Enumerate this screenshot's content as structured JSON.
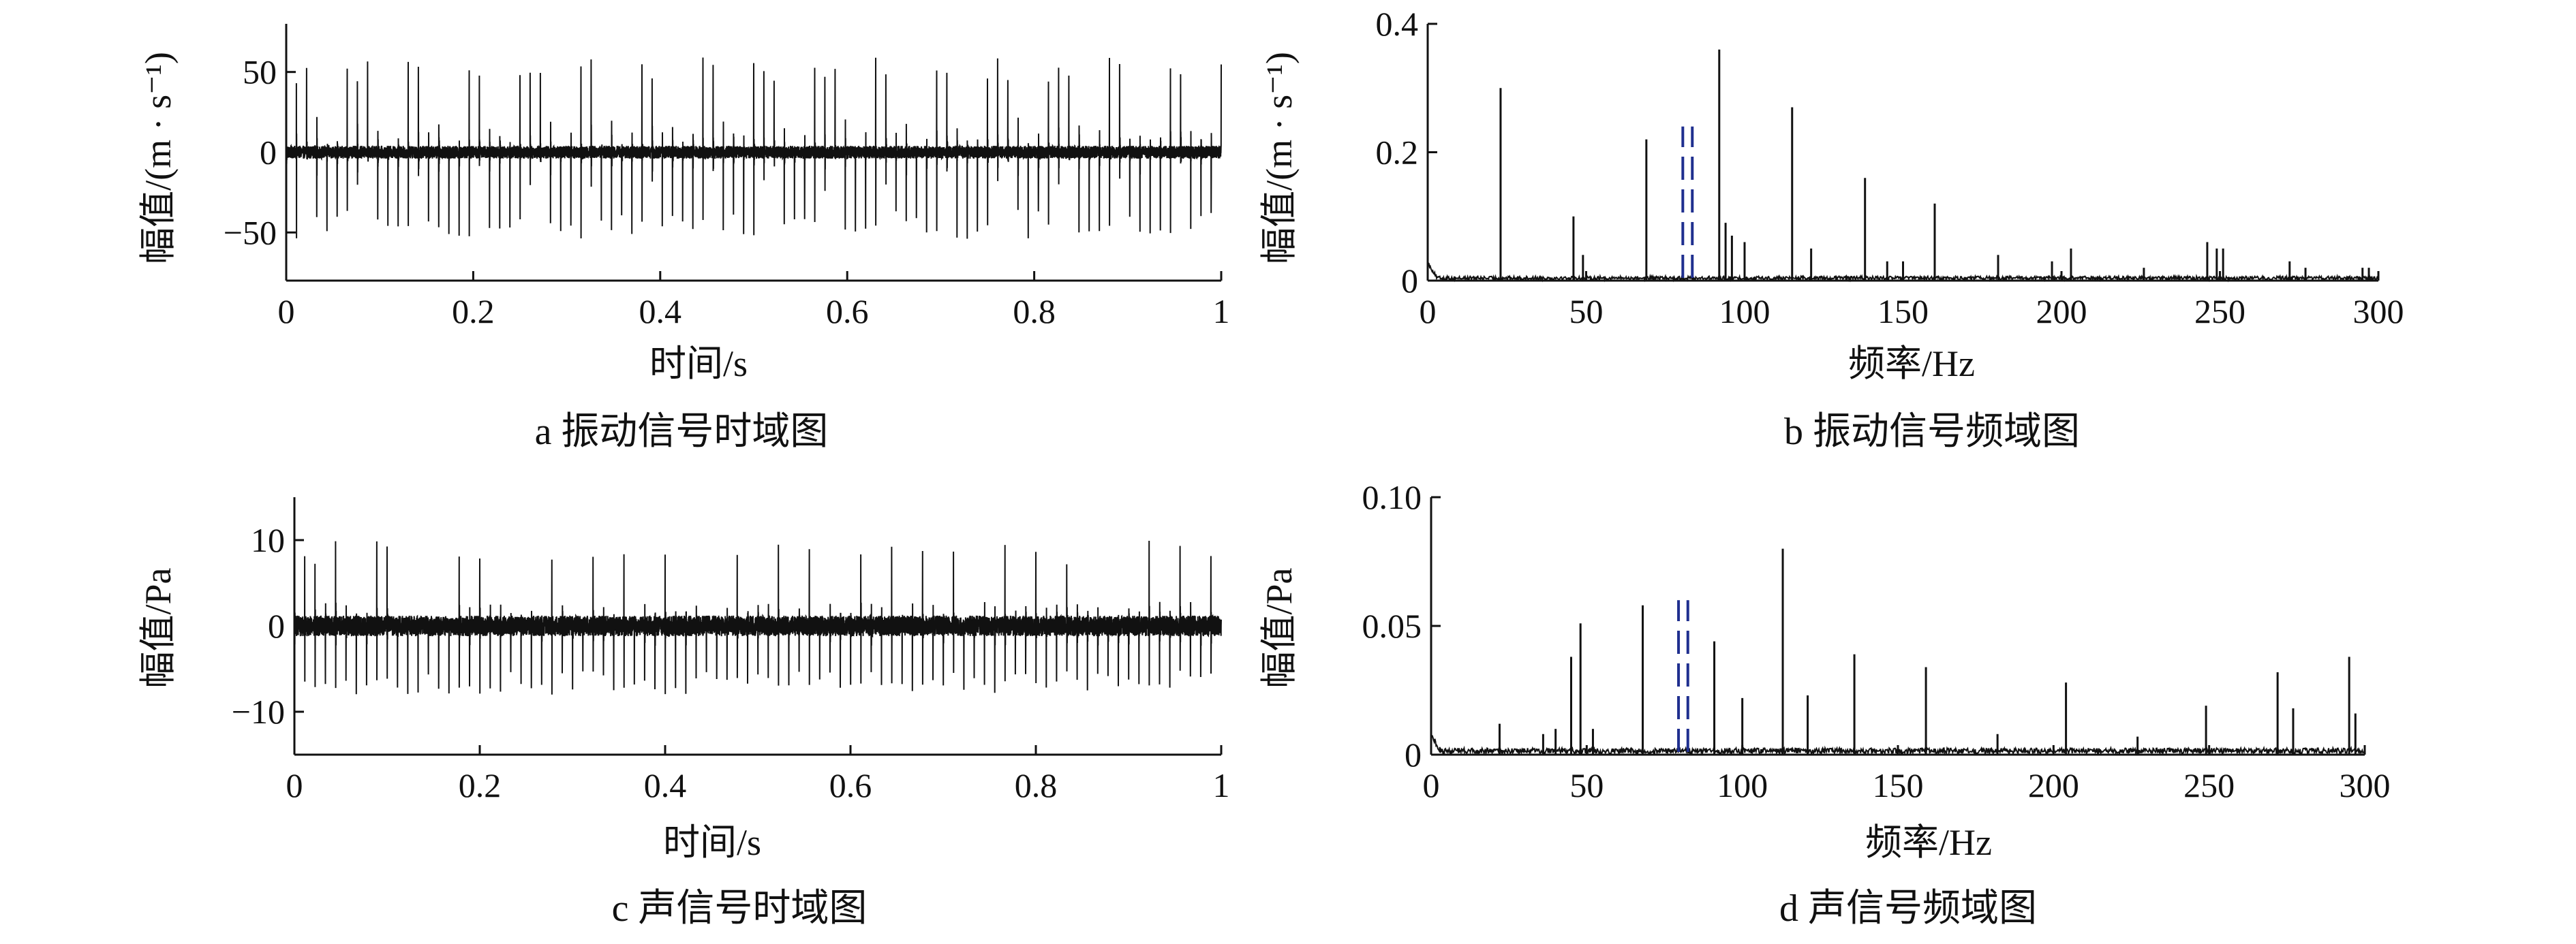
{
  "chart_data": [
    {
      "type": "line",
      "panel": "a",
      "caption": "a  振动信号时域图",
      "xlabel": "时间/s",
      "ylabel": "幅值/(m · s⁻¹)",
      "xlim": [
        0,
        1
      ],
      "ylim": [
        -80,
        80
      ],
      "xticks": [
        0,
        0.2,
        0.4,
        0.6,
        0.8,
        1
      ],
      "xtick_labels": [
        "0",
        "0.2",
        "0.4",
        "0.6",
        "0.8",
        "1"
      ],
      "yticks": [
        -50,
        0,
        50
      ],
      "ytick_labels": [
        "−50",
        "0",
        "50"
      ],
      "signal": {
        "impulse_rate_hz": 92,
        "peak_pos": 60,
        "peak_neg": -55,
        "noise": 4
      },
      "markers": []
    },
    {
      "type": "line",
      "panel": "b",
      "caption": "b  振动信号频域图",
      "xlabel": "频率/Hz",
      "ylabel": "幅值/(m · s⁻¹)",
      "xlim": [
        0,
        300
      ],
      "ylim": [
        0,
        0.4
      ],
      "xticks": [
        0,
        50,
        100,
        150,
        200,
        250,
        300
      ],
      "xtick_labels": [
        "0",
        "50",
        "100",
        "150",
        "200",
        "250",
        "300"
      ],
      "yticks": [
        0,
        0.2,
        0.4
      ],
      "ytick_labels": [
        "0",
        "0.2",
        "0.4"
      ],
      "peaks": [
        {
          "x": 23,
          "y": 0.3
        },
        {
          "x": 46,
          "y": 0.1
        },
        {
          "x": 49,
          "y": 0.04
        },
        {
          "x": 69,
          "y": 0.22
        },
        {
          "x": 92,
          "y": 0.36
        },
        {
          "x": 94,
          "y": 0.09
        },
        {
          "x": 96,
          "y": 0.07
        },
        {
          "x": 100,
          "y": 0.06
        },
        {
          "x": 115,
          "y": 0.27
        },
        {
          "x": 121,
          "y": 0.05
        },
        {
          "x": 138,
          "y": 0.16
        },
        {
          "x": 145,
          "y": 0.03
        },
        {
          "x": 150,
          "y": 0.03
        },
        {
          "x": 160,
          "y": 0.12
        },
        {
          "x": 180,
          "y": 0.04
        },
        {
          "x": 197,
          "y": 0.03
        },
        {
          "x": 203,
          "y": 0.05
        },
        {
          "x": 226,
          "y": 0.02
        },
        {
          "x": 246,
          "y": 0.06
        },
        {
          "x": 249,
          "y": 0.05
        },
        {
          "x": 251,
          "y": 0.05
        },
        {
          "x": 272,
          "y": 0.03
        },
        {
          "x": 277,
          "y": 0.02
        },
        {
          "x": 295,
          "y": 0.02
        },
        {
          "x": 297,
          "y": 0.02
        }
      ],
      "noise_floor": 0.004,
      "markers": [
        {
          "x": 80.5,
          "y_from": 0,
          "y_to": 0.24,
          "color": "#1f2f8f"
        },
        {
          "x": 83.5,
          "y_from": 0,
          "y_to": 0.24,
          "color": "#1f2f8f"
        }
      ]
    },
    {
      "type": "line",
      "panel": "c",
      "caption": "c  声信号时域图",
      "xlabel": "时间/s",
      "ylabel": "幅值/Pa",
      "xlim": [
        0,
        1
      ],
      "ylim": [
        -15,
        15
      ],
      "xticks": [
        0,
        0.2,
        0.4,
        0.6,
        0.8,
        1
      ],
      "xtick_labels": [
        "0",
        "0.2",
        "0.4",
        "0.6",
        "0.8",
        "1"
      ],
      "yticks": [
        -10,
        0,
        10
      ],
      "ytick_labels": [
        "−10",
        "0",
        "10"
      ],
      "signal": {
        "impulse_rate_hz": 90,
        "peak_pos": 10,
        "peak_neg": -8,
        "noise": 1.2
      },
      "markers": []
    },
    {
      "type": "line",
      "panel": "d",
      "caption": "d  声信号频域图",
      "xlabel": "频率/Hz",
      "ylabel": "幅值/Pa",
      "xlim": [
        0,
        300
      ],
      "ylim": [
        0,
        0.1
      ],
      "xticks": [
        0,
        50,
        100,
        150,
        200,
        250,
        300
      ],
      "xtick_labels": [
        "0",
        "50",
        "100",
        "150",
        "200",
        "250",
        "300"
      ],
      "yticks": [
        0,
        0.05,
        0.1
      ],
      "ytick_labels": [
        "0",
        "0.05",
        "0.10"
      ],
      "peaks": [
        {
          "x": 22,
          "y": 0.012
        },
        {
          "x": 36,
          "y": 0.008
        },
        {
          "x": 40,
          "y": 0.01
        },
        {
          "x": 45,
          "y": 0.038
        },
        {
          "x": 48,
          "y": 0.051
        },
        {
          "x": 52,
          "y": 0.01
        },
        {
          "x": 68,
          "y": 0.058
        },
        {
          "x": 91,
          "y": 0.044
        },
        {
          "x": 100,
          "y": 0.022
        },
        {
          "x": 113,
          "y": 0.08
        },
        {
          "x": 121,
          "y": 0.023
        },
        {
          "x": 136,
          "y": 0.039
        },
        {
          "x": 159,
          "y": 0.034
        },
        {
          "x": 182,
          "y": 0.008
        },
        {
          "x": 204,
          "y": 0.028
        },
        {
          "x": 227,
          "y": 0.007
        },
        {
          "x": 249,
          "y": 0.019
        },
        {
          "x": 272,
          "y": 0.032
        },
        {
          "x": 277,
          "y": 0.018
        },
        {
          "x": 295,
          "y": 0.038
        },
        {
          "x": 297,
          "y": 0.016
        }
      ],
      "noise_floor": 0.0015,
      "markers": [
        {
          "x": 79.5,
          "y_from": 0,
          "y_to": 0.06,
          "color": "#1f2f8f"
        },
        {
          "x": 82.5,
          "y_from": 0,
          "y_to": 0.06,
          "color": "#1f2f8f"
        }
      ]
    }
  ]
}
